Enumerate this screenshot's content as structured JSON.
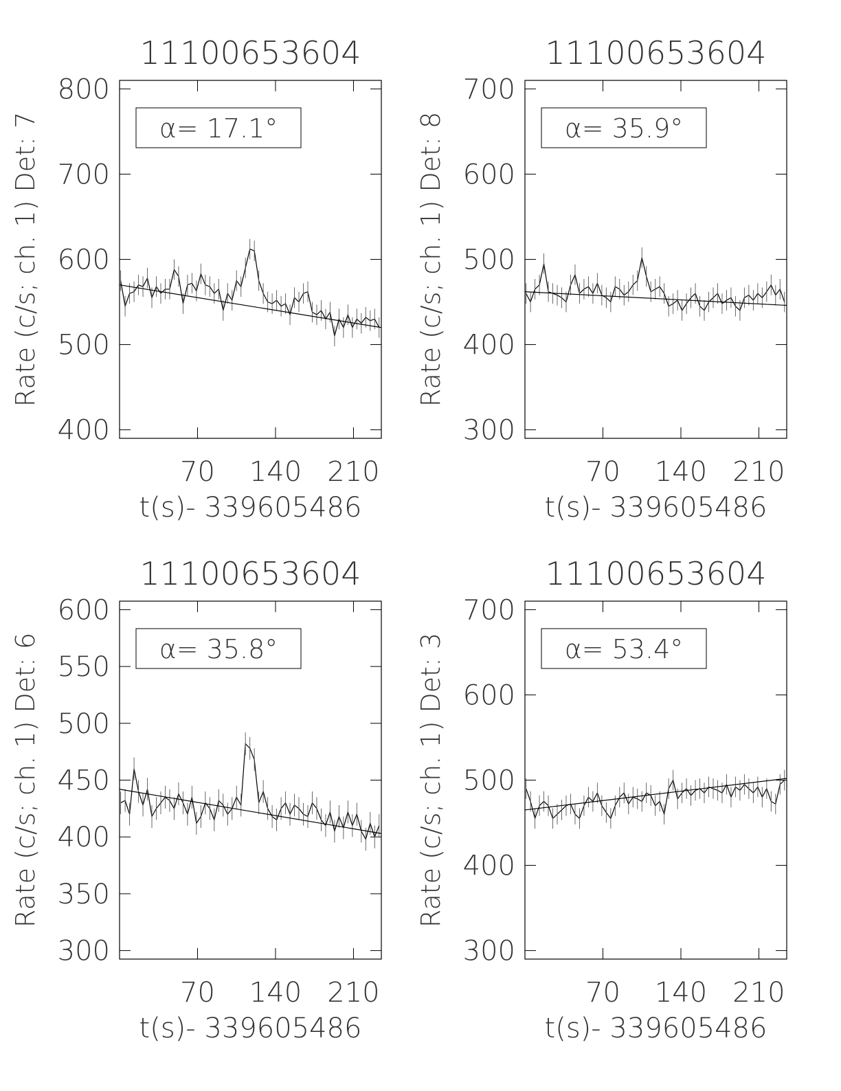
{
  "chart_data": [
    {
      "type": "line",
      "title": "11100653604",
      "x_label": "t(s)- 339605486",
      "y_label": "Rate (c/s; ch. 1) Det: 7",
      "annotation": "α= 17.1°",
      "xlim": [
        0,
        235
      ],
      "xticks": [
        70,
        140,
        210
      ],
      "ylim": [
        390,
        810
      ],
      "yticks": [
        400,
        500,
        600,
        700,
        800
      ],
      "x": [
        1,
        5,
        9,
        13,
        17,
        21,
        25,
        29,
        33,
        37,
        41,
        45,
        49,
        53,
        57,
        61,
        65,
        69,
        73,
        77,
        81,
        85,
        89,
        93,
        97,
        101,
        105,
        109,
        113,
        117,
        121,
        125,
        129,
        133,
        137,
        141,
        145,
        149,
        153,
        157,
        161,
        165,
        169,
        173,
        177,
        181,
        185,
        189,
        193,
        197,
        201,
        205,
        209,
        213,
        217,
        221,
        225,
        229,
        233
      ],
      "series": [
        {
          "color": "#000000",
          "error": 12,
          "values": [
            575,
            545,
            560,
            562,
            570,
            568,
            578,
            555,
            568,
            560,
            565,
            565,
            588,
            580,
            548,
            570,
            572,
            563,
            583,
            570,
            568,
            560,
            565,
            540,
            560,
            552,
            575,
            568,
            590,
            612,
            610,
            575,
            560,
            550,
            548,
            552,
            545,
            548,
            535,
            555,
            550,
            560,
            562,
            538,
            535,
            540,
            530,
            538,
            510,
            530,
            520,
            535,
            520,
            530,
            525,
            532,
            528,
            530,
            520
          ]
        },
        {
          "color": "#000000",
          "x": [
            0,
            235
          ],
          "values": [
            570,
            520
          ]
        }
      ]
    },
    {
      "type": "line",
      "title": "11100653604",
      "x_label": "t(s)- 339605486",
      "y_label": "Rate (c/s; ch. 1) Det: 8",
      "annotation": "α= 35.9°",
      "xlim": [
        0,
        235
      ],
      "xticks": [
        70,
        140,
        210
      ],
      "ylim": [
        290,
        710
      ],
      "yticks": [
        300,
        400,
        500,
        600,
        700
      ],
      "x": [
        1,
        5,
        9,
        13,
        17,
        21,
        25,
        29,
        33,
        37,
        41,
        45,
        49,
        53,
        57,
        61,
        65,
        69,
        73,
        77,
        81,
        85,
        89,
        93,
        97,
        101,
        105,
        109,
        113,
        117,
        121,
        125,
        129,
        133,
        137,
        141,
        145,
        149,
        153,
        157,
        161,
        165,
        169,
        173,
        177,
        181,
        185,
        189,
        193,
        197,
        201,
        205,
        209,
        213,
        217,
        221,
        225,
        229,
        233
      ],
      "series": [
        {
          "color": "#000000",
          "error": 12,
          "values": [
            460,
            450,
            465,
            470,
            495,
            462,
            460,
            458,
            455,
            450,
            470,
            482,
            460,
            465,
            468,
            460,
            472,
            458,
            455,
            450,
            468,
            465,
            458,
            462,
            470,
            475,
            502,
            480,
            462,
            465,
            468,
            460,
            445,
            448,
            452,
            440,
            448,
            455,
            460,
            445,
            440,
            450,
            455,
            460,
            448,
            452,
            455,
            445,
            440,
            455,
            458,
            452,
            460,
            455,
            462,
            470,
            458,
            465,
            450
          ]
        },
        {
          "color": "#000000",
          "x": [
            0,
            235
          ],
          "values": [
            462,
            446
          ]
        }
      ]
    },
    {
      "type": "line",
      "title": "11100653604",
      "x_label": "t(s)- 339605486",
      "y_label": "Rate (c/s; ch. 1) Det: 6",
      "annotation": "α= 35.8°",
      "xlim": [
        0,
        235
      ],
      "xticks": [
        70,
        140,
        210
      ],
      "ylim": [
        292.5,
        607.5
      ],
      "yticks": [
        300,
        350,
        400,
        450,
        500,
        550,
        600
      ],
      "x": [
        1,
        5,
        9,
        13,
        17,
        21,
        25,
        29,
        33,
        37,
        41,
        45,
        49,
        53,
        57,
        61,
        65,
        69,
        73,
        77,
        81,
        85,
        89,
        93,
        97,
        101,
        105,
        109,
        113,
        117,
        121,
        125,
        129,
        133,
        137,
        141,
        145,
        149,
        153,
        157,
        161,
        165,
        169,
        173,
        177,
        181,
        185,
        189,
        193,
        197,
        201,
        205,
        209,
        213,
        217,
        221,
        225,
        229,
        233
      ],
      "series": [
        {
          "color": "#000000",
          "error": 10,
          "values": [
            430,
            432,
            420,
            460,
            440,
            428,
            442,
            418,
            425,
            430,
            435,
            432,
            425,
            438,
            430,
            420,
            435,
            412,
            418,
            430,
            425,
            415,
            432,
            428,
            420,
            425,
            435,
            428,
            482,
            478,
            468,
            430,
            440,
            425,
            418,
            415,
            425,
            430,
            420,
            428,
            425,
            420,
            418,
            430,
            425,
            415,
            410,
            422,
            405,
            418,
            408,
            422,
            410,
            420,
            405,
            398,
            412,
            400,
            410
          ]
        },
        {
          "color": "#000000",
          "x": [
            0,
            235
          ],
          "values": [
            442,
            403
          ]
        }
      ]
    },
    {
      "type": "line",
      "title": "11100653604",
      "x_label": "t(s)- 339605486",
      "y_label": "Rate (c/s; ch. 1) Det: 3",
      "annotation": "α= 53.4°",
      "xlim": [
        0,
        235
      ],
      "xticks": [
        70,
        140,
        210
      ],
      "ylim": [
        290,
        710
      ],
      "yticks": [
        300,
        400,
        500,
        600,
        700
      ],
      "x": [
        1,
        5,
        9,
        13,
        17,
        21,
        25,
        29,
        33,
        37,
        41,
        45,
        49,
        53,
        57,
        61,
        65,
        69,
        73,
        77,
        81,
        85,
        89,
        93,
        97,
        101,
        105,
        109,
        113,
        117,
        121,
        125,
        129,
        133,
        137,
        141,
        145,
        149,
        153,
        157,
        161,
        165,
        169,
        173,
        177,
        181,
        185,
        189,
        193,
        197,
        201,
        205,
        209,
        213,
        217,
        221,
        225,
        229,
        233
      ],
      "series": [
        {
          "color": "#000000",
          "error": 12,
          "values": [
            490,
            475,
            455,
            470,
            475,
            470,
            455,
            460,
            465,
            470,
            472,
            460,
            455,
            470,
            480,
            475,
            485,
            470,
            462,
            455,
            470,
            480,
            485,
            472,
            480,
            478,
            475,
            485,
            482,
            470,
            475,
            460,
            490,
            500,
            478,
            485,
            490,
            482,
            488,
            490,
            485,
            492,
            490,
            488,
            485,
            495,
            480,
            492,
            488,
            495,
            490,
            485,
            492,
            480,
            490,
            475,
            472,
            495,
            500
          ]
        },
        {
          "color": "#000000",
          "x": [
            0,
            235
          ],
          "values": [
            465,
            502
          ]
        }
      ]
    }
  ]
}
